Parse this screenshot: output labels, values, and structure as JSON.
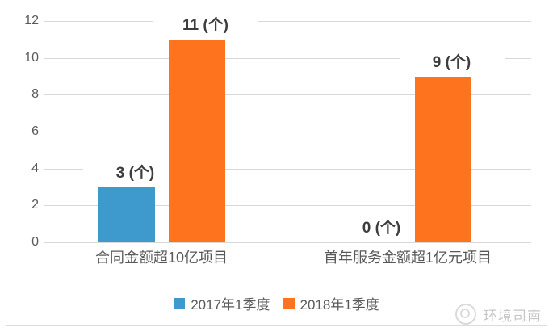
{
  "chart_data": {
    "type": "bar",
    "title": "",
    "categories": [
      "合同金额超10亿项目",
      "首年服务金额超1亿元项目"
    ],
    "series": [
      {
        "name": "2017年1季度",
        "color": "#3E9ACC",
        "values": [
          3,
          0
        ],
        "data_labels": [
          "3 (个)",
          "0 (个)"
        ]
      },
      {
        "name": "2018年1季度",
        "color": "#FD731E",
        "values": [
          11,
          9
        ],
        "data_labels": [
          "11 (个)",
          "9 (个)"
        ]
      }
    ],
    "ylim": [
      0,
      12
    ],
    "yticks": [
      0,
      2,
      4,
      6,
      8,
      10,
      12
    ],
    "xlabel": "",
    "ylabel": "",
    "grid": true,
    "legend_position": "bottom",
    "unit_suffix": "(个)"
  },
  "watermark": {
    "icon": "compass-logo-icon",
    "text": "环境司南"
  },
  "colors": {
    "series_2017": "#3E9ACC",
    "series_2018": "#FD731E",
    "gridline": "#D8D8D8",
    "axis_text": "#595959",
    "data_label_text": "#3D3D3D",
    "frame_border": "#DCDCDC",
    "watermark_text": "#C6C6C6",
    "background": "#FFFFFF"
  }
}
